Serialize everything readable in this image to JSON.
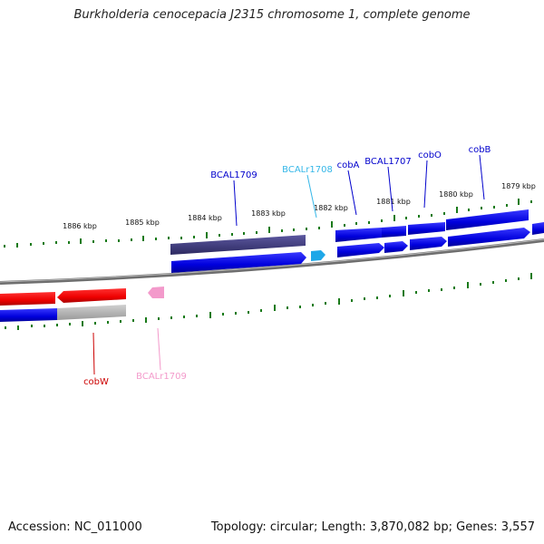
{
  "title": "Burkholderia cenocepacia J2315 chromosome 1, complete genome",
  "footer": {
    "accession": "Accession: NC_011000",
    "summary": "Topology: circular; Length: 3,870,082 bp; Genes: 3,557"
  },
  "colors": {
    "backbone": "#7f7f7f",
    "tick": "#1a7a1a",
    "gene_blue": "#0000dd",
    "gene_dark": "#3d3a78",
    "gene_cyan": "#1ea7e8",
    "gene_red": "#ee0000",
    "gene_pink": "#f39acb",
    "gene_gray": "#b5b5b5"
  },
  "scale": {
    "unit": "kbp",
    "labels": [
      "1886 kbp",
      "1885 kbp",
      "1884 kbp",
      "1883 kbp",
      "1882 kbp",
      "1881 kbp",
      "1880 kbp",
      "1879 kbp"
    ]
  },
  "gene_labels": [
    {
      "text": "BCAL1709",
      "color": "#0000cc"
    },
    {
      "text": "BCALr1708",
      "color": "#35b7e8"
    },
    {
      "text": "cobA",
      "color": "#0000cc"
    },
    {
      "text": "BCAL1707",
      "color": "#0000cc"
    },
    {
      "text": "cobO",
      "color": "#0000cc"
    },
    {
      "text": "cobB",
      "color": "#0000cc"
    },
    {
      "text": "cobW",
      "color": "#cc0000"
    },
    {
      "text": "BCALr1709",
      "color": "#f39acb"
    }
  ]
}
